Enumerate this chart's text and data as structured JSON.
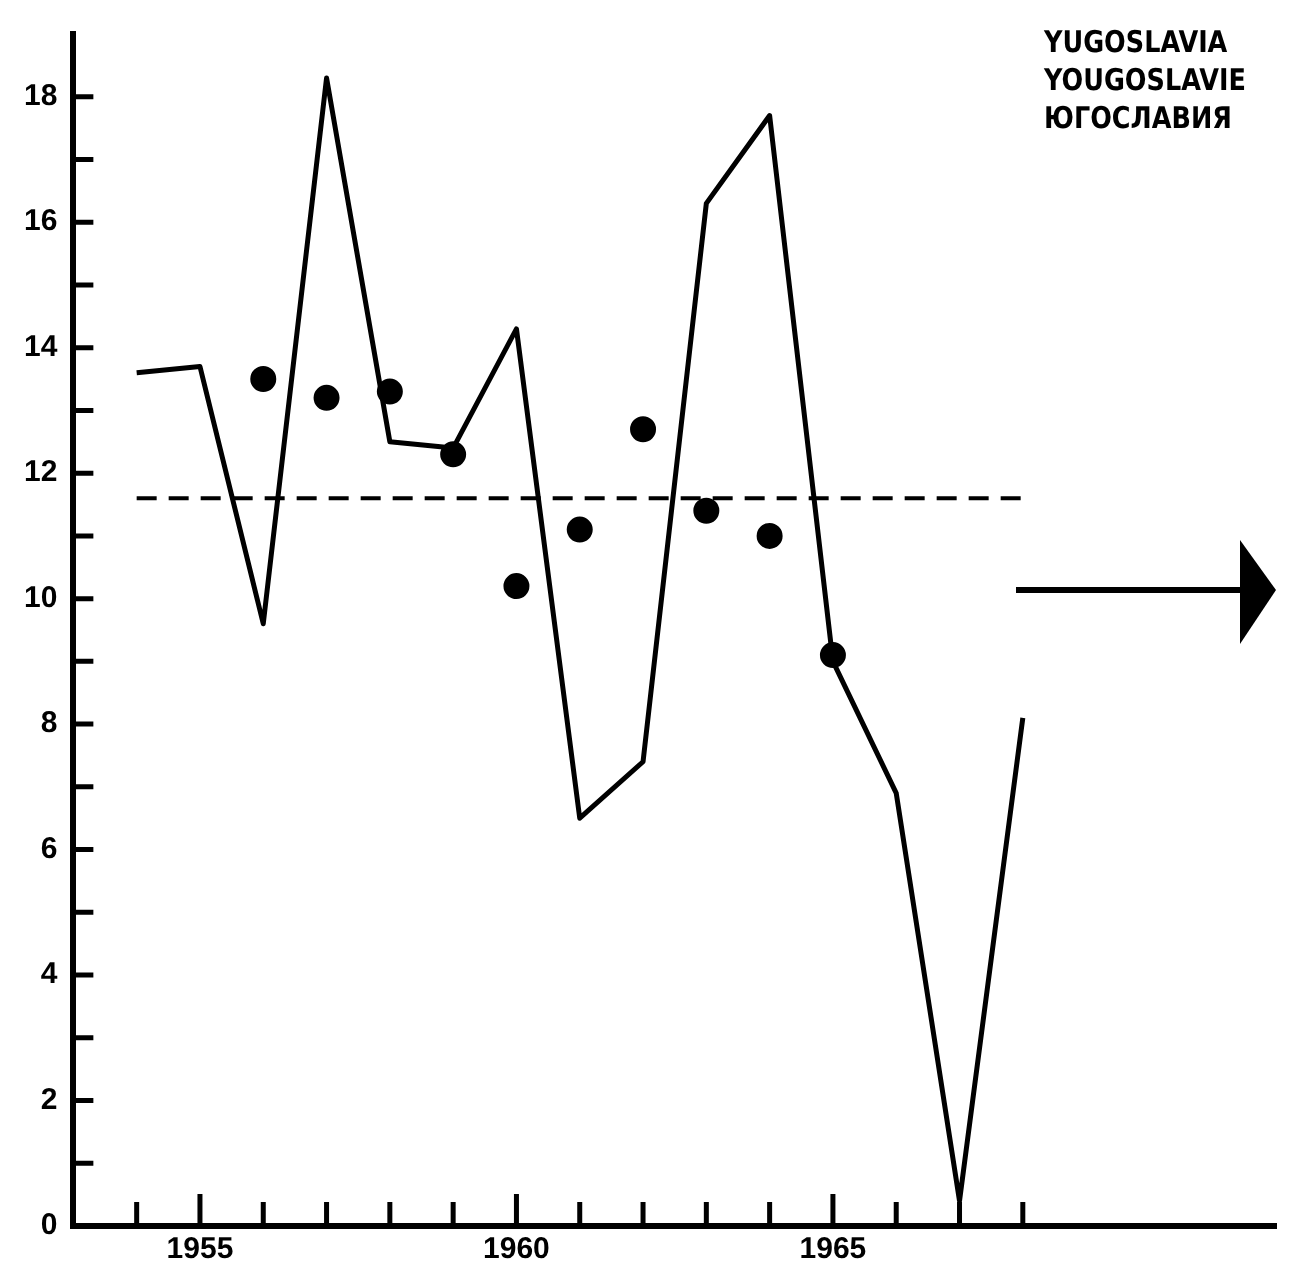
{
  "chart_data": {
    "type": "line",
    "title": "YUGOSLAVIA",
    "subtitle": "YOUGOSLAVIE",
    "annotations": [
      "ЮГОСЛАВИЯ"
    ],
    "xlim": [
      1953,
      1972
    ],
    "xticks": [
      {
        "value": 1954,
        "label": null
      },
      1955,
      {
        "value": 1956,
        "label": null
      },
      {
        "value": 1957,
        "label": null
      },
      {
        "value": 1958,
        "label": null
      },
      {
        "value": 1959,
        "label": null
      },
      1960,
      {
        "value": 1961,
        "label": null
      },
      {
        "value": 1962,
        "label": null
      },
      {
        "value": 1963,
        "label": null
      },
      {
        "value": 1964,
        "label": null
      },
      1965,
      {
        "value": 1966,
        "label": null
      },
      {
        "value": 1967,
        "label": null
      },
      {
        "value": 1968,
        "label": null
      }
    ],
    "ylim": [
      0,
      19
    ],
    "yticks": [
      0,
      {
        "value": 1,
        "label": null
      },
      2,
      {
        "value": 3,
        "label": null
      },
      4,
      {
        "value": 5,
        "label": null
      },
      6,
      {
        "value": 7,
        "label": null
      },
      8,
      {
        "value": 9,
        "label": null
      },
      10,
      {
        "value": 11,
        "label": null
      },
      12,
      {
        "value": 13,
        "label": null
      },
      14,
      {
        "value": 15,
        "label": null
      },
      16,
      {
        "value": 17,
        "label": null
      },
      18
    ],
    "grid": false,
    "legend": false,
    "series": [
      {
        "type": "line",
        "color": "#000000",
        "marker": "none",
        "line_style": "solid",
        "x": [
          1954,
          1955,
          1956,
          1957,
          1958,
          1959,
          1960,
          1961,
          1962,
          1963,
          1964,
          1965,
          1966,
          1967,
          1968
        ],
        "values": [
          13.6,
          13.7,
          9.6,
          18.3,
          12.5,
          12.4,
          14.3,
          6.5,
          7.4,
          16.3,
          17.7,
          9.0,
          6.9,
          0.4,
          8.1
        ]
      },
      {
        "type": "scatter",
        "color": "#000000",
        "marker": "circle",
        "x": [
          1956,
          1957,
          1958,
          1959,
          1960,
          1961,
          1962,
          1963,
          1964,
          1965
        ],
        "values": [
          13.5,
          13.2,
          13.3,
          12.3,
          10.2,
          11.1,
          12.7,
          11.4,
          11.0,
          9.1
        ]
      }
    ],
    "ref_lines": [
      {
        "axis": "y",
        "value": 11.6,
        "line_style": "dashed",
        "color": "#000000"
      }
    ]
  }
}
